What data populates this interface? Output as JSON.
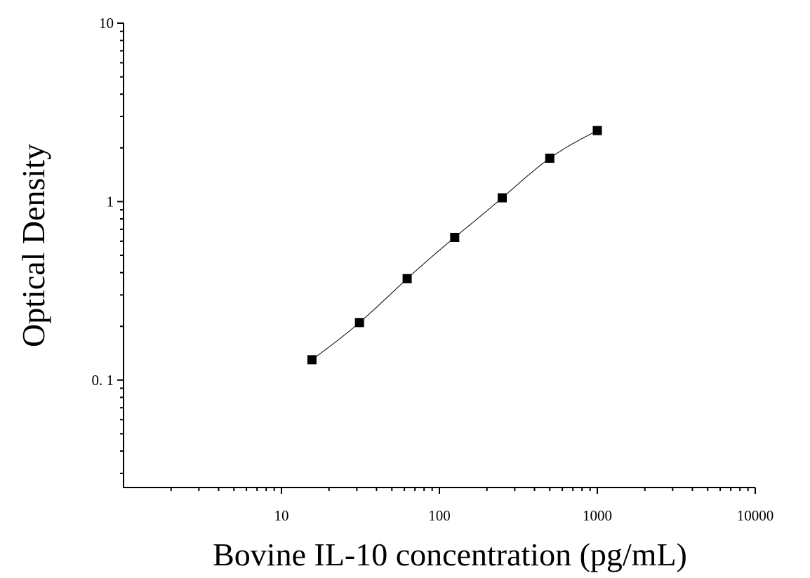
{
  "chart_data": {
    "type": "scatter",
    "title": "",
    "xlabel": "Bovine IL-10 concentration (pg/mL)",
    "ylabel": "Optical Density",
    "x_scale": "log",
    "y_scale": "log",
    "xlim": [
      1,
      10000
    ],
    "ylim": [
      0.025,
      10
    ],
    "x_ticks": [
      10,
      100,
      1000,
      10000
    ],
    "x_tick_labels": [
      "10",
      "100",
      "1000",
      "10000"
    ],
    "y_ticks": [
      0.1,
      1,
      10
    ],
    "y_tick_labels": [
      "0. 1",
      "1",
      "10"
    ],
    "grid": false,
    "legend": false,
    "series": [
      {
        "points": [
          {
            "x": 15.6,
            "y": 0.13
          },
          {
            "x": 31.2,
            "y": 0.21
          },
          {
            "x": 62.5,
            "y": 0.37
          },
          {
            "x": 125,
            "y": 0.63
          },
          {
            "x": 250,
            "y": 1.05
          },
          {
            "x": 500,
            "y": 1.75
          },
          {
            "x": 1000,
            "y": 2.5
          }
        ],
        "marker": "square",
        "color": "#000000",
        "fit_curve": true
      }
    ]
  }
}
